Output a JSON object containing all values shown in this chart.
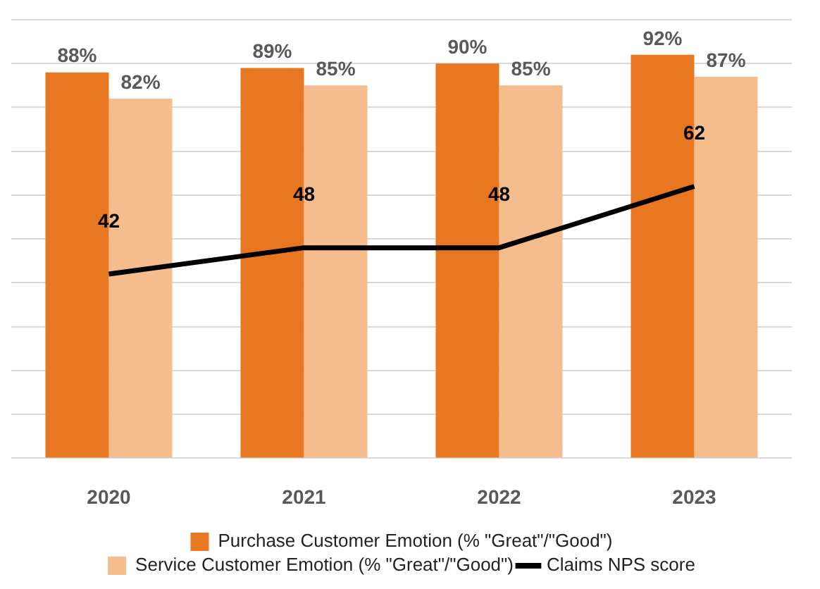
{
  "chart_data": {
    "type": "bar",
    "categories": [
      "2020",
      "2021",
      "2022",
      "2023"
    ],
    "series": [
      {
        "name": "Purchase Customer Emotion (% \"Great\"/\"Good\")",
        "color": "#e87722",
        "values": [
          88,
          89,
          90,
          92
        ],
        "value_labels": [
          "88%",
          "89%",
          "90%",
          "92%"
        ]
      },
      {
        "name": "Service Customer Emotion (% \"Great\"/\"Good\")",
        "color": "#f5bc8e",
        "values": [
          82,
          85,
          85,
          87
        ],
        "value_labels": [
          "82%",
          "85%",
          "85%",
          "87%"
        ]
      },
      {
        "name": "Claims NPS score",
        "type": "line",
        "color": "#000000",
        "values": [
          42,
          48,
          48,
          62
        ],
        "value_labels": [
          "42",
          "48",
          "48",
          "62"
        ],
        "line_style": "solid",
        "marker": "none"
      }
    ],
    "ylim": [
      0,
      100
    ],
    "yticks": [
      {
        "value": 0,
        "label": null
      },
      {
        "value": 10,
        "label": null
      },
      {
        "value": 20,
        "label": null
      },
      {
        "value": 30,
        "label": null
      },
      {
        "value": 40,
        "label": null
      },
      {
        "value": 50,
        "label": null
      },
      {
        "value": 60,
        "label": null
      },
      {
        "value": 70,
        "label": null
      },
      {
        "value": 80,
        "label": null
      },
      {
        "value": 90,
        "label": null
      },
      {
        "value": 100,
        "label": null
      }
    ],
    "grid": "y",
    "legend": "bottom",
    "tick_labels": "x"
  }
}
